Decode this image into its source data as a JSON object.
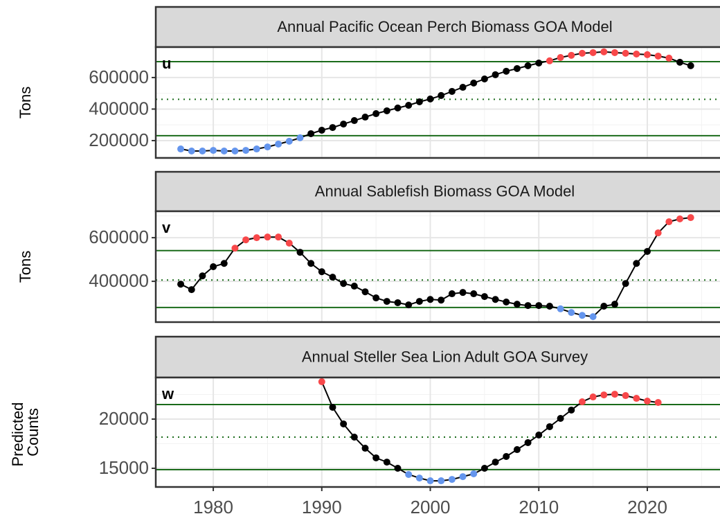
{
  "chart_data": [
    {
      "type": "line",
      "title": "Annual Pacific Ocean Perch Biomass GOA Model",
      "panel_label": "u",
      "ylabel": "Tons",
      "x": [
        1977,
        1978,
        1979,
        1980,
        1981,
        1982,
        1983,
        1984,
        1985,
        1986,
        1987,
        1988,
        1989,
        1990,
        1991,
        1992,
        1993,
        1994,
        1995,
        1996,
        1997,
        1998,
        1999,
        2000,
        2001,
        2002,
        2003,
        2004,
        2005,
        2006,
        2007,
        2008,
        2009,
        2010,
        2011,
        2012,
        2013,
        2014,
        2015,
        2016,
        2017,
        2018,
        2019,
        2020,
        2021,
        2022,
        2023,
        2024
      ],
      "values": [
        147000,
        134000,
        134000,
        138000,
        134000,
        134000,
        138000,
        147000,
        160000,
        178000,
        196000,
        218000,
        244000,
        266000,
        283000,
        305000,
        327000,
        349000,
        371000,
        389000,
        407000,
        424000,
        446000,
        464000,
        486000,
        512000,
        538000,
        565000,
        591000,
        618000,
        640000,
        657000,
        675000,
        692000,
        706000,
        727000,
        741000,
        754000,
        758000,
        763000,
        758000,
        754000,
        749000,
        745000,
        736000,
        723000,
        697000,
        675000
      ],
      "xlim": [
        1974.7,
        2026.7
      ],
      "xticks": [
        1980,
        1990,
        2000,
        2010,
        2020
      ],
      "ylim": [
        90000,
        793000
      ],
      "yticks": [
        200000,
        400000,
        600000
      ],
      "reference_lines": {
        "upper": 701000,
        "mean": 462000,
        "lower": 231000
      },
      "colors": {
        "line": "#000000",
        "within": "#000000",
        "above": "#f8484a",
        "below": "#6495ed",
        "reference": "#1a6b1a"
      },
      "grid": true
    },
    {
      "type": "line",
      "title": "Annual Sablefish Biomass GOA Model",
      "panel_label": "v",
      "ylabel": "Tons",
      "x": [
        1977,
        1978,
        1979,
        1980,
        1981,
        1982,
        1983,
        1984,
        1985,
        1986,
        1987,
        1988,
        1989,
        1990,
        1991,
        1992,
        1993,
        1994,
        1995,
        1996,
        1997,
        1998,
        1999,
        2000,
        2001,
        2002,
        2003,
        2004,
        2005,
        2006,
        2007,
        2008,
        2009,
        2010,
        2011,
        2012,
        2013,
        2014,
        2015,
        2016,
        2017,
        2018,
        2019,
        2020,
        2021,
        2022,
        2023,
        2024
      ],
      "values": [
        387000,
        362000,
        425000,
        467000,
        482000,
        552000,
        590000,
        600000,
        603000,
        603000,
        575000,
        533000,
        482000,
        444000,
        419000,
        390000,
        378000,
        352000,
        324000,
        308000,
        302000,
        292000,
        308000,
        317000,
        314000,
        343000,
        349000,
        343000,
        330000,
        317000,
        305000,
        295000,
        289000,
        289000,
        286000,
        274000,
        257000,
        244000,
        238000,
        286000,
        295000,
        390000,
        482000,
        537000,
        622000,
        673000,
        686000,
        692000
      ],
      "xlim": [
        1974.7,
        2026.7
      ],
      "xticks": [
        1980,
        1990,
        2000,
        2010,
        2020
      ],
      "ylim": [
        213000,
        721000
      ],
      "yticks": [
        400000,
        600000
      ],
      "reference_lines": {
        "upper": 541000,
        "mean": 406000,
        "lower": 280000
      },
      "colors": {
        "line": "#000000",
        "within": "#000000",
        "above": "#f8484a",
        "below": "#6495ed",
        "reference": "#1a6b1a"
      },
      "grid": true
    },
    {
      "type": "line",
      "title": "Annual Steller Sea Lion Adult GOA Survey",
      "panel_label": "w",
      "ylabel": "Predicted Counts",
      "x": [
        1990,
        1991,
        1992,
        1993,
        1994,
        1995,
        1996,
        1997,
        1998,
        1999,
        2000,
        2001,
        2002,
        2003,
        2004,
        2005,
        2006,
        2007,
        2008,
        2009,
        2010,
        2011,
        2012,
        2013,
        2014,
        2015,
        2016,
        2017,
        2018,
        2019,
        2020,
        2021
      ],
      "values": [
        23800,
        21200,
        19510,
        18170,
        17040,
        16060,
        15630,
        15000,
        14370,
        14010,
        13730,
        13730,
        13870,
        14150,
        14440,
        15000,
        15630,
        16200,
        16900,
        17610,
        18380,
        19230,
        20070,
        20920,
        21760,
        22250,
        22460,
        22530,
        22390,
        22110,
        21830,
        21690
      ],
      "xlim": [
        1974.7,
        2026.7
      ],
      "xticks": [
        1980,
        1990,
        2000,
        2010,
        2020
      ],
      "ylim": [
        13100,
        24225
      ],
      "yticks": [
        15000,
        20000
      ],
      "reference_lines": {
        "upper": 21480,
        "mean": 18170,
        "lower": 14860
      },
      "colors": {
        "line": "#000000",
        "within": "#000000",
        "above": "#f8484a",
        "below": "#6495ed",
        "reference": "#1a6b1a"
      },
      "grid": true,
      "show_x_tick_labels": true
    }
  ]
}
